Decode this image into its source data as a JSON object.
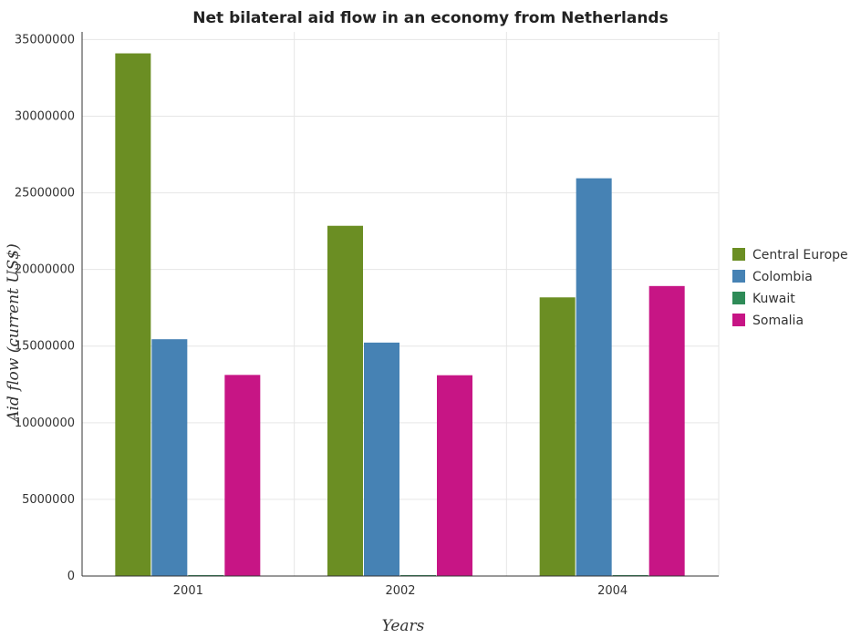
{
  "chart_data": {
    "type": "bar",
    "title": "Net bilateral aid flow in an economy from Netherlands",
    "xlabel": "Years",
    "ylabel": "Aid flow (current US$)",
    "categories": [
      "2001",
      "2002",
      "2004"
    ],
    "series": [
      {
        "name": "Central Europe",
        "color": "#6b8e23",
        "values": [
          34100000,
          22850000,
          18180000
        ]
      },
      {
        "name": "Colombia",
        "color": "#4682b4",
        "values": [
          15450000,
          15230000,
          25950000
        ]
      },
      {
        "name": "Kuwait",
        "color": "#2e8b57",
        "values": [
          10000,
          10000,
          10000
        ]
      },
      {
        "name": "Somalia",
        "color": "#c71585",
        "values": [
          13120000,
          13100000,
          18920000
        ]
      }
    ],
    "ylim": [
      0,
      35500000
    ],
    "yticks": [
      0,
      5000000,
      10000000,
      15000000,
      20000000,
      25000000,
      30000000,
      35000000
    ],
    "ytick_labels": [
      "0",
      "5000000",
      "10000000",
      "15000000",
      "20000000",
      "25000000",
      "30000000",
      "35000000"
    ],
    "grid": true,
    "legend_position": "right"
  }
}
